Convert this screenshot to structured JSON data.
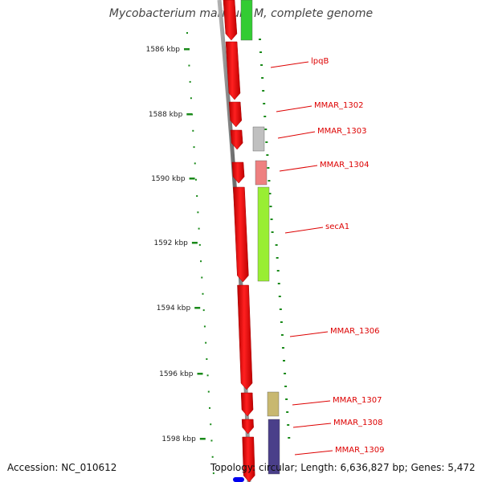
{
  "header": {
    "title": "Mycobacterium marinum M, complete genome"
  },
  "footer": {
    "accession": "Accession: NC_010612",
    "topology": "Topology: circular; Length: 6,636,827 bp; Genes: 5,472"
  },
  "ruler_kbp": [
    "1586 kbp",
    "1588 kbp",
    "1590 kbp",
    "1592 kbp",
    "1594 kbp",
    "1596 kbp",
    "1598 kbp"
  ],
  "genes": [
    {
      "name": "lpqB"
    },
    {
      "name": "MMAR_1302"
    },
    {
      "name": "MMAR_1303"
    },
    {
      "name": "MMAR_1304"
    },
    {
      "name": "secA1"
    },
    {
      "name": "MMAR_1306"
    },
    {
      "name": "MMAR_1307"
    },
    {
      "name": "MMAR_1308"
    },
    {
      "name": "MMAR_1309"
    }
  ],
  "colors": {
    "backbone": "#808080",
    "forward_strand": "#ee0000",
    "scale_ticks": "#1a8a1a",
    "label_text": "#dd0000",
    "cog_green": "#33cc33",
    "cog_grey": "#c0c0c0",
    "cog_pink": "#ee8080",
    "cog_lime": "#99ee33",
    "cog_khaki": "#c8b870",
    "cog_navy": "#4a3f8a",
    "marker_blue": "#0000ee"
  }
}
